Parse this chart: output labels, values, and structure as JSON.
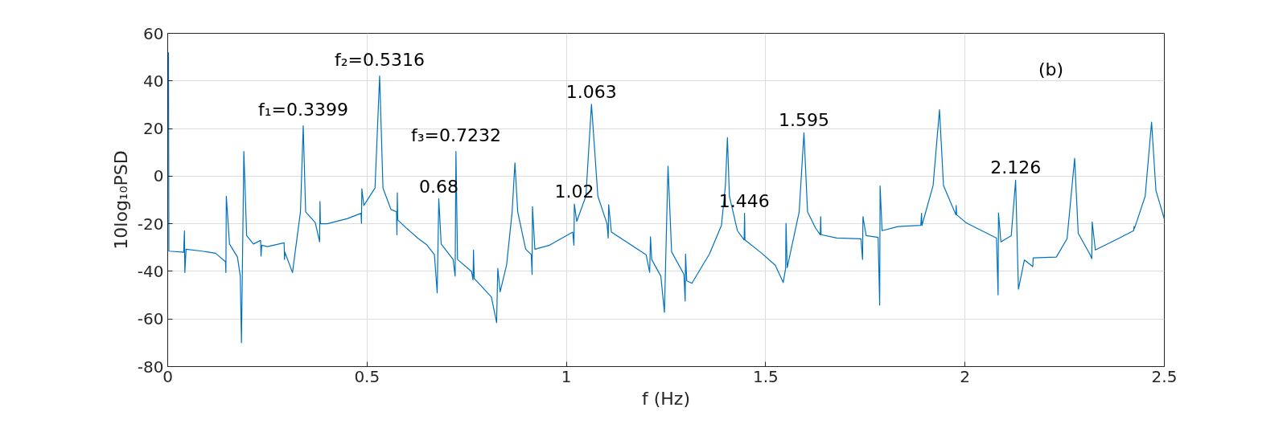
{
  "chart_data": {
    "type": "line",
    "xlabel": "f (Hz)",
    "ylabel": "10log₁₀PSD",
    "xlim": [
      0,
      2.5
    ],
    "ylim": [
      -80,
      60
    ],
    "xticks": [
      0,
      0.5,
      1,
      1.5,
      2,
      2.5
    ],
    "yticks": [
      -80,
      -60,
      -40,
      -20,
      0,
      20,
      40,
      60
    ],
    "grid": true,
    "marker": "none",
    "line_style": "solid",
    "series": [
      {
        "color": "#0072bd",
        "x": [
          0.002,
          0.003,
          0.004,
          0.04,
          0.042,
          0.043,
          0.046,
          0.09,
          0.12,
          0.145,
          0.146,
          0.147,
          0.155,
          0.175,
          0.182,
          0.185,
          0.191,
          0.198,
          0.215,
          0.233,
          0.234,
          0.236,
          0.25,
          0.292,
          0.293,
          0.294,
          0.313,
          0.333,
          0.3399,
          0.346,
          0.37,
          0.381,
          0.382,
          0.383,
          0.4,
          0.45,
          0.485,
          0.486,
          0.487,
          0.492,
          0.52,
          0.5316,
          0.54,
          0.56,
          0.574,
          0.575,
          0.576,
          0.577,
          0.6,
          0.629,
          0.649,
          0.669,
          0.676,
          0.68,
          0.686,
          0.716,
          0.721,
          0.723,
          0.727,
          0.762,
          0.766,
          0.767,
          0.769,
          0.812,
          0.825,
          0.828,
          0.834,
          0.85,
          0.864,
          0.871,
          0.878,
          0.898,
          0.912,
          0.914,
          0.915,
          0.921,
          0.958,
          1.016,
          1.019,
          1.02,
          1.026,
          1.049,
          1.063,
          1.079,
          1.102,
          1.105,
          1.106,
          1.113,
          1.2,
          1.209,
          1.211,
          1.214,
          1.237,
          1.246,
          1.255,
          1.264,
          1.295,
          1.298,
          1.299,
          1.302,
          1.315,
          1.342,
          1.359,
          1.389,
          1.399,
          1.404,
          1.409,
          1.429,
          1.446,
          1.447,
          1.448,
          1.49,
          1.524,
          1.544,
          1.55,
          1.551,
          1.554,
          1.584,
          1.596,
          1.605,
          1.625,
          1.637,
          1.638,
          1.639,
          1.678,
          1.739,
          1.743,
          1.744,
          1.752,
          1.782,
          1.786,
          1.787,
          1.792,
          1.832,
          1.889,
          1.891,
          1.892,
          1.92,
          1.936,
          1.946,
          1.977,
          1.978,
          1.979,
          2.002,
          2.079,
          2.083,
          2.084,
          2.09,
          2.116,
          2.127,
          2.134,
          2.149,
          2.17,
          2.171,
          2.172,
          2.229,
          2.256,
          2.275,
          2.284,
          2.314,
          2.318,
          2.319,
          2.327,
          2.384,
          2.423,
          2.424,
          2.425,
          2.452,
          2.468,
          2.479,
          2.5
        ],
        "values": [
          52,
          -31.5,
          -31.5,
          -32,
          -23,
          -40.5,
          -30.7,
          -31.6,
          -32.4,
          -36,
          -40.5,
          -8.4,
          -28.5,
          -34,
          -42,
          -70,
          10.4,
          -25,
          -28.5,
          -27,
          -33.6,
          -29,
          -29.6,
          -28,
          -35,
          -32,
          -40.5,
          -15,
          21.2,
          -15,
          -19.5,
          -27.6,
          -10.6,
          -20,
          -20,
          -17.9,
          -15.6,
          -19.8,
          -5.3,
          -12.3,
          -5,
          42.1,
          -5,
          -14,
          -15,
          -24.6,
          -7,
          -18.4,
          -22,
          -26.3,
          -28.7,
          -33,
          -49,
          -9.5,
          -28.5,
          -35,
          -42,
          10.4,
          -35,
          -40,
          -43.6,
          -31,
          -43,
          -50.8,
          -61.5,
          -38.8,
          -48.6,
          -37.4,
          -15,
          5.6,
          -15,
          -30.7,
          -33,
          -41.3,
          -12.8,
          -30.7,
          -29,
          -23.5,
          -29,
          -11.7,
          -19,
          -8.4,
          30.2,
          -8.4,
          -20,
          -26,
          -12,
          -23.5,
          -33,
          -40.4,
          -25.5,
          -35,
          -42,
          -57.2,
          4.2,
          -31.8,
          -41.3,
          -52.5,
          -32.7,
          -44,
          -45,
          -37.4,
          -32.7,
          -20.7,
          -3.9,
          16.2,
          -8.4,
          -22.9,
          -26.8,
          -15.6,
          -26.8,
          -32.4,
          -37.4,
          -44.7,
          -38.8,
          -19.8,
          -38.5,
          -15,
          18.2,
          -15,
          -21.8,
          -24.6,
          -17,
          -24.6,
          -26,
          -26.3,
          -35,
          -17,
          -25,
          -25.7,
          -54.2,
          -4.1,
          -22.9,
          -21.2,
          -20.7,
          -15.6,
          -20.7,
          -3.9,
          27.9,
          -3.9,
          -16.2,
          -12.3,
          -16.2,
          -19.5,
          -26,
          -49.9,
          -15.4,
          -27.6,
          -25,
          -1.7,
          -47.5,
          -35.2,
          -38,
          -34.3,
          -34.3,
          -34,
          -26.3,
          7.5,
          -24,
          -33,
          -34.7,
          -19.2,
          -31,
          -26.3,
          -22.9,
          -21.2,
          -22,
          -8.4,
          22.7,
          -6.1,
          -18
        ]
      }
    ],
    "annotations": [
      {
        "text": "f₁=0.3399",
        "x": 0.3399,
        "y": 21.2
      },
      {
        "text": "f₂=0.5316",
        "x": 0.5316,
        "y": 42.1
      },
      {
        "text": "f₃=0.7232",
        "x": 0.7232,
        "y": 10.4
      },
      {
        "text": "0.68",
        "x": 0.68,
        "y": -9.5
      },
      {
        "text": "1.02",
        "x": 1.02,
        "y": -11.7
      },
      {
        "text": "1.063",
        "x": 1.063,
        "y": 30.2
      },
      {
        "text": "1.446",
        "x": 1.446,
        "y": -15.6
      },
      {
        "text": "1.595",
        "x": 1.596,
        "y": 18.2
      },
      {
        "text": "2.126",
        "x": 2.127,
        "y": -1.7
      },
      "(b)"
    ]
  }
}
